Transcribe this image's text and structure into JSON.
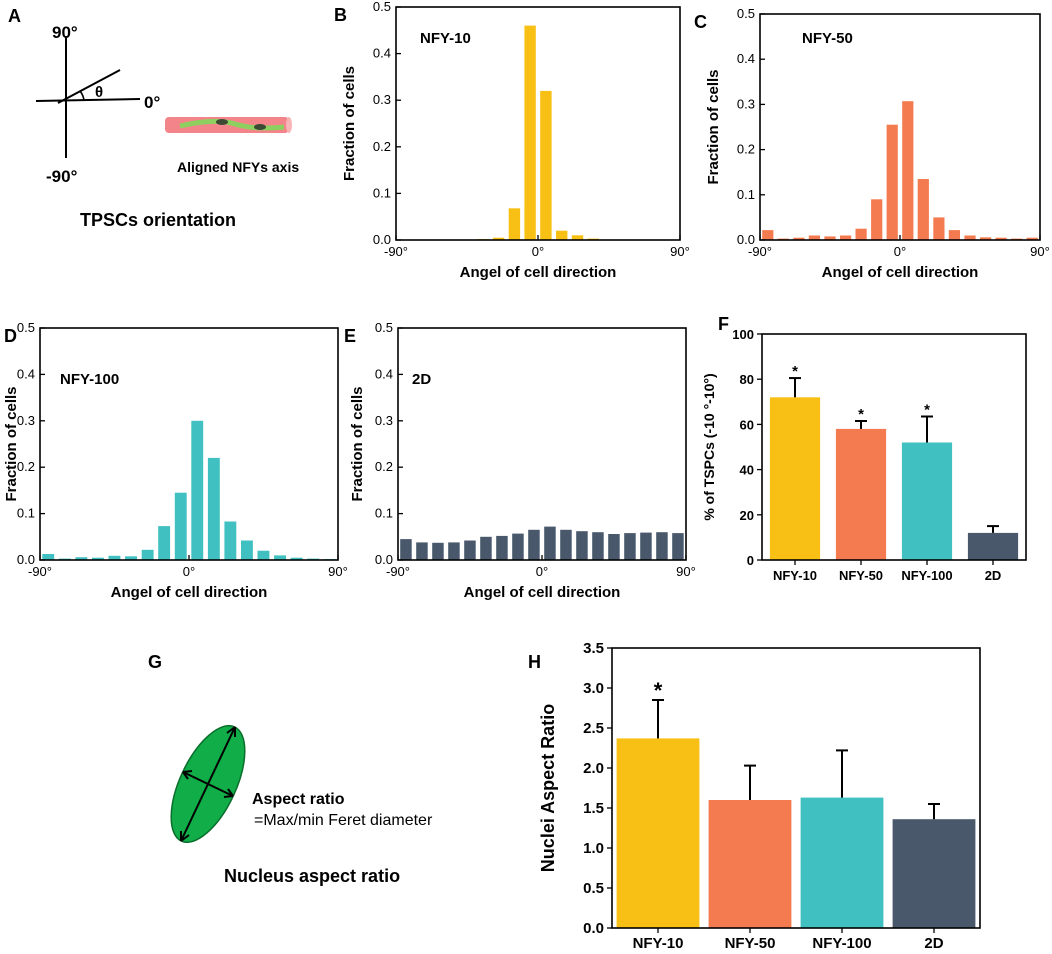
{
  "panels": {
    "A": {
      "letter": "A",
      "up": "90°",
      "down": "-90°",
      "right": "0°",
      "theta": "θ",
      "axis_caption": "Aligned NFYs axis",
      "caption": "TPSCs orientation"
    },
    "G": {
      "letter": "G",
      "ratio_label": "Aspect ratio",
      "ratio_formula": "=Max/min Feret diameter",
      "caption": "Nucleus aspect ratio"
    }
  },
  "colors": {
    "NFY-10": "#f8c015",
    "NFY-50": "#f47b50",
    "NFY-100": "#41c0c1",
    "2D": "#4a586b",
    "cell": "#f2848a",
    "fiber": "#8ed060",
    "nucleus": "#3c4a33",
    "ellipse": "#11ad48"
  },
  "chart_data": [
    {
      "id": "B",
      "letter": "B",
      "type": "bar",
      "annotation": "NFY-10",
      "color": "NFY-10",
      "xlabel": "Angel of cell direction",
      "ylabel": "Fraction of cells",
      "xlim": [
        -90,
        90
      ],
      "ylim": [
        0,
        0.5
      ],
      "xticks": [
        -90,
        0,
        90
      ],
      "xtick_labels": [
        "-90°",
        "0°",
        "90°"
      ],
      "yticks": [
        0.0,
        0.1,
        0.2,
        0.3,
        0.4,
        0.5
      ],
      "ytick_labels": [
        "0.0",
        "0.1",
        "0.2",
        "0.3",
        "0.4",
        "0.5"
      ],
      "x": [
        -85,
        -75,
        -65,
        -55,
        -45,
        -35,
        -25,
        -15,
        -5,
        5,
        15,
        25,
        35,
        45,
        55,
        65,
        75,
        85
      ],
      "values": [
        0,
        0,
        0,
        0,
        0,
        0.002,
        0.005,
        0.068,
        0.46,
        0.32,
        0.02,
        0.01,
        0.003,
        0.001,
        0,
        0.001,
        0,
        0
      ]
    },
    {
      "id": "C",
      "letter": "C",
      "type": "bar",
      "annotation": "NFY-50",
      "color": "NFY-50",
      "xlabel": "Angel of cell direction",
      "ylabel": "Fraction of cells",
      "xlim": [
        -90,
        90
      ],
      "ylim": [
        0,
        0.5
      ],
      "xticks": [
        -90,
        0,
        90
      ],
      "xtick_labels": [
        "-90°",
        "0°",
        "90°"
      ],
      "yticks": [
        0.0,
        0.1,
        0.2,
        0.3,
        0.4,
        0.5
      ],
      "ytick_labels": [
        "0.0",
        "0.1",
        "0.2",
        "0.3",
        "0.4",
        "0.5"
      ],
      "x": [
        -85,
        -75,
        -65,
        -55,
        -45,
        -35,
        -25,
        -15,
        -5,
        5,
        15,
        25,
        35,
        45,
        55,
        65,
        75,
        85
      ],
      "values": [
        0.022,
        0.003,
        0.005,
        0.01,
        0.008,
        0.01,
        0.025,
        0.09,
        0.255,
        0.307,
        0.135,
        0.05,
        0.022,
        0.01,
        0.006,
        0.005,
        0.003,
        0.005
      ]
    },
    {
      "id": "D",
      "letter": "D",
      "type": "bar",
      "annotation": "NFY-100",
      "color": "NFY-100",
      "xlabel": "Angel of cell direction",
      "ylabel": "Fraction of cells",
      "xlim": [
        -90,
        90
      ],
      "ylim": [
        0,
        0.5
      ],
      "xticks": [
        -90,
        0,
        90
      ],
      "xtick_labels": [
        "-90°",
        "0°",
        "90°"
      ],
      "yticks": [
        0.0,
        0.1,
        0.2,
        0.3,
        0.4,
        0.5
      ],
      "ytick_labels": [
        "0.0",
        "0.1",
        "0.2",
        "0.3",
        "0.4",
        "0.5"
      ],
      "x": [
        -85,
        -75,
        -65,
        -55,
        -45,
        -35,
        -25,
        -15,
        -5,
        5,
        15,
        25,
        35,
        45,
        55,
        65,
        75,
        85
      ],
      "values": [
        0.013,
        0.003,
        0.006,
        0.005,
        0.009,
        0.008,
        0.022,
        0.073,
        0.145,
        0.3,
        0.22,
        0.083,
        0.042,
        0.02,
        0.01,
        0.005,
        0.003,
        0.002
      ]
    },
    {
      "id": "E",
      "letter": "E",
      "type": "bar",
      "annotation": "2D",
      "color": "2D",
      "xlabel": "Angel of cell direction",
      "ylabel": "Fraction of cells",
      "xlim": [
        -90,
        90
      ],
      "ylim": [
        0,
        0.5
      ],
      "xticks": [
        -90,
        0,
        90
      ],
      "xtick_labels": [
        "-90°",
        "0°",
        "90°"
      ],
      "yticks": [
        0.0,
        0.1,
        0.2,
        0.3,
        0.4,
        0.5
      ],
      "ytick_labels": [
        "0.0",
        "0.1",
        "0.2",
        "0.3",
        "0.4",
        "0.5"
      ],
      "x": [
        -85,
        -75,
        -65,
        -55,
        -45,
        -35,
        -25,
        -15,
        -5,
        5,
        15,
        25,
        35,
        45,
        55,
        65,
        75,
        85
      ],
      "values": [
        0.045,
        0.038,
        0.037,
        0.038,
        0.042,
        0.05,
        0.052,
        0.057,
        0.065,
        0.072,
        0.065,
        0.062,
        0.06,
        0.056,
        0.058,
        0.059,
        0.06,
        0.058
      ]
    },
    {
      "id": "F",
      "letter": "F",
      "type": "bar",
      "ylabel": "% of TSPCs  (-10 °-10°)",
      "categories": [
        "NFY-10",
        "NFY-50",
        "NFY-100",
        "2D"
      ],
      "values": [
        72,
        58,
        52,
        12
      ],
      "errors": [
        8.5,
        3.5,
        11.5,
        3
      ],
      "significance": [
        "*",
        "*",
        "*",
        ""
      ],
      "ylim": [
        0,
        100
      ],
      "yticks": [
        0,
        20,
        40,
        60,
        80,
        100
      ],
      "ytick_labels": [
        "0",
        "20",
        "40",
        "60",
        "80",
        "100"
      ]
    },
    {
      "id": "H",
      "letter": "H",
      "type": "bar",
      "ylabel": "Nuclei Aspect Ratio",
      "categories": [
        "NFY-10",
        "NFY-50",
        "NFY-100",
        "2D"
      ],
      "values": [
        2.37,
        1.6,
        1.63,
        1.36
      ],
      "errors": [
        0.48,
        0.43,
        0.59,
        0.19
      ],
      "significance": [
        "*",
        "",
        "",
        ""
      ],
      "ylim": [
        0,
        3.5
      ],
      "yticks": [
        0,
        0.5,
        1,
        1.5,
        2,
        2.5,
        3,
        3.5
      ],
      "ytick_labels": [
        "0.0",
        "0.5",
        "1.0",
        "1.5",
        "2.0",
        "2.5",
        "3.0",
        "3.5"
      ]
    }
  ]
}
